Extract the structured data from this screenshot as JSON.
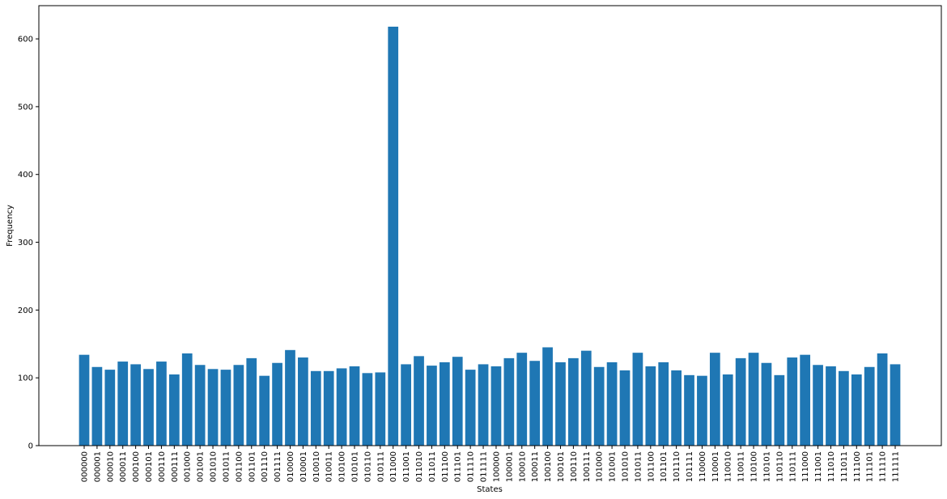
{
  "chart_data": {
    "type": "bar",
    "xlabel": "States",
    "ylabel": "Frequency",
    "color": "#1f77b4",
    "categories": [
      "000000",
      "000001",
      "000010",
      "000011",
      "000100",
      "000101",
      "000110",
      "000111",
      "001000",
      "001001",
      "001010",
      "001011",
      "001100",
      "001101",
      "001110",
      "001111",
      "010000",
      "010001",
      "010010",
      "010011",
      "010100",
      "010101",
      "010110",
      "010111",
      "011000",
      "011001",
      "011010",
      "011011",
      "011100",
      "011101",
      "011110",
      "011111",
      "100000",
      "100001",
      "100010",
      "100011",
      "100100",
      "100101",
      "100110",
      "100111",
      "101000",
      "101001",
      "101010",
      "101011",
      "101100",
      "101101",
      "101110",
      "101111",
      "110000",
      "110001",
      "110010",
      "110011",
      "110100",
      "110101",
      "110110",
      "110111",
      "111000",
      "111001",
      "111010",
      "111011",
      "111100",
      "111101",
      "111110",
      "111111"
    ],
    "values": [
      134,
      116,
      112,
      124,
      120,
      113,
      124,
      105,
      136,
      119,
      113,
      112,
      119,
      129,
      103,
      122,
      141,
      130,
      110,
      110,
      114,
      117,
      107,
      108,
      618,
      120,
      132,
      118,
      123,
      131,
      112,
      120,
      117,
      129,
      137,
      125,
      145,
      123,
      129,
      140,
      116,
      123,
      111,
      137,
      117,
      123,
      111,
      104,
      103,
      137,
      105,
      129,
      137,
      122,
      104,
      130,
      134,
      119,
      117,
      110,
      105,
      116,
      136,
      120
    ],
    "ylim": [
      0,
      649
    ],
    "yticks": [
      0,
      100,
      200,
      300,
      400,
      500,
      600
    ],
    "grid": false
  }
}
